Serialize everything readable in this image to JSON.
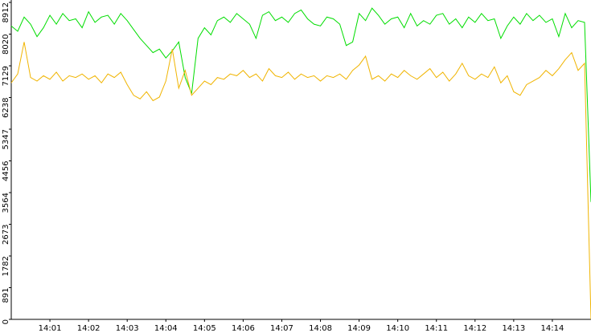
{
  "chart_data": {
    "type": "line",
    "categories": [
      null,
      null,
      null,
      null,
      null,
      null,
      "14:01",
      null,
      null,
      null,
      null,
      null,
      "14:02",
      null,
      null,
      null,
      null,
      null,
      "14:03",
      null,
      null,
      null,
      null,
      null,
      "14:04",
      null,
      null,
      null,
      null,
      null,
      "14:05",
      null,
      null,
      null,
      null,
      null,
      "14:06",
      null,
      null,
      null,
      null,
      null,
      "14:07",
      null,
      null,
      null,
      null,
      null,
      "14:08",
      null,
      null,
      null,
      null,
      null,
      "14:09",
      null,
      null,
      null,
      null,
      null,
      "14:10",
      null,
      null,
      null,
      null,
      null,
      "14:11",
      null,
      null,
      null,
      null,
      null,
      "14:12",
      null,
      null,
      null,
      null,
      null,
      "14:13",
      null,
      null,
      null,
      null,
      null,
      "14:14",
      null,
      null,
      null,
      null,
      null,
      null
    ],
    "series": [
      {
        "color": "#00dd00",
        "values": [
          8250,
          8100,
          8500,
          8300,
          7950,
          8200,
          8550,
          8300,
          8600,
          8400,
          8450,
          8200,
          8650,
          8350,
          8500,
          8550,
          8300,
          8600,
          8400,
          8150,
          7900,
          7700,
          7500,
          7600,
          7350,
          7550,
          7800,
          6800,
          6350,
          7900,
          8200,
          8000,
          8400,
          8500,
          8350,
          8600,
          8450,
          8300,
          7900,
          8550,
          8650,
          8400,
          8500,
          8350,
          8600,
          8700,
          8450,
          8300,
          8250,
          8500,
          8450,
          8300,
          7700,
          7800,
          8600,
          8400,
          8750,
          8550,
          8300,
          8450,
          8500,
          8200,
          8600,
          8250,
          8400,
          8300,
          8550,
          8600,
          8300,
          8450,
          8200,
          8500,
          8350,
          8600,
          8400,
          8450,
          7900,
          8250,
          8500,
          8300,
          8600,
          8400,
          8550,
          8350,
          8450,
          7950,
          8600,
          8200,
          8400,
          8350,
          3300
        ]
      },
      {
        "color": "#f0b400",
        "values": [
          6650,
          6900,
          7800,
          6800,
          6700,
          6850,
          6750,
          6950,
          6700,
          6850,
          6800,
          6900,
          6750,
          6850,
          6650,
          6900,
          6800,
          6950,
          6600,
          6300,
          6200,
          6400,
          6150,
          6250,
          6700,
          7600,
          6500,
          7000,
          6300,
          6500,
          6700,
          6600,
          6800,
          6750,
          6900,
          6850,
          7000,
          6800,
          6900,
          6700,
          7050,
          6850,
          6800,
          6950,
          6750,
          6900,
          6800,
          6850,
          6700,
          6850,
          6800,
          6900,
          6750,
          7000,
          7150,
          7400,
          6750,
          6850,
          6700,
          6900,
          6800,
          7000,
          6850,
          6750,
          6900,
          7050,
          6800,
          6950,
          6700,
          6900,
          7200,
          6850,
          6750,
          6900,
          6800,
          7100,
          6650,
          6850,
          6400,
          6300,
          6600,
          6700,
          6800,
          7000,
          6850,
          7050,
          7300,
          7500,
          7000,
          7200,
          0
        ]
      }
    ],
    "ylim": [
      0,
      8912
    ],
    "yticks": [
      0,
      891,
      1782,
      2673,
      3564,
      4456,
      5347,
      6238,
      7129,
      8020,
      8912
    ]
  }
}
